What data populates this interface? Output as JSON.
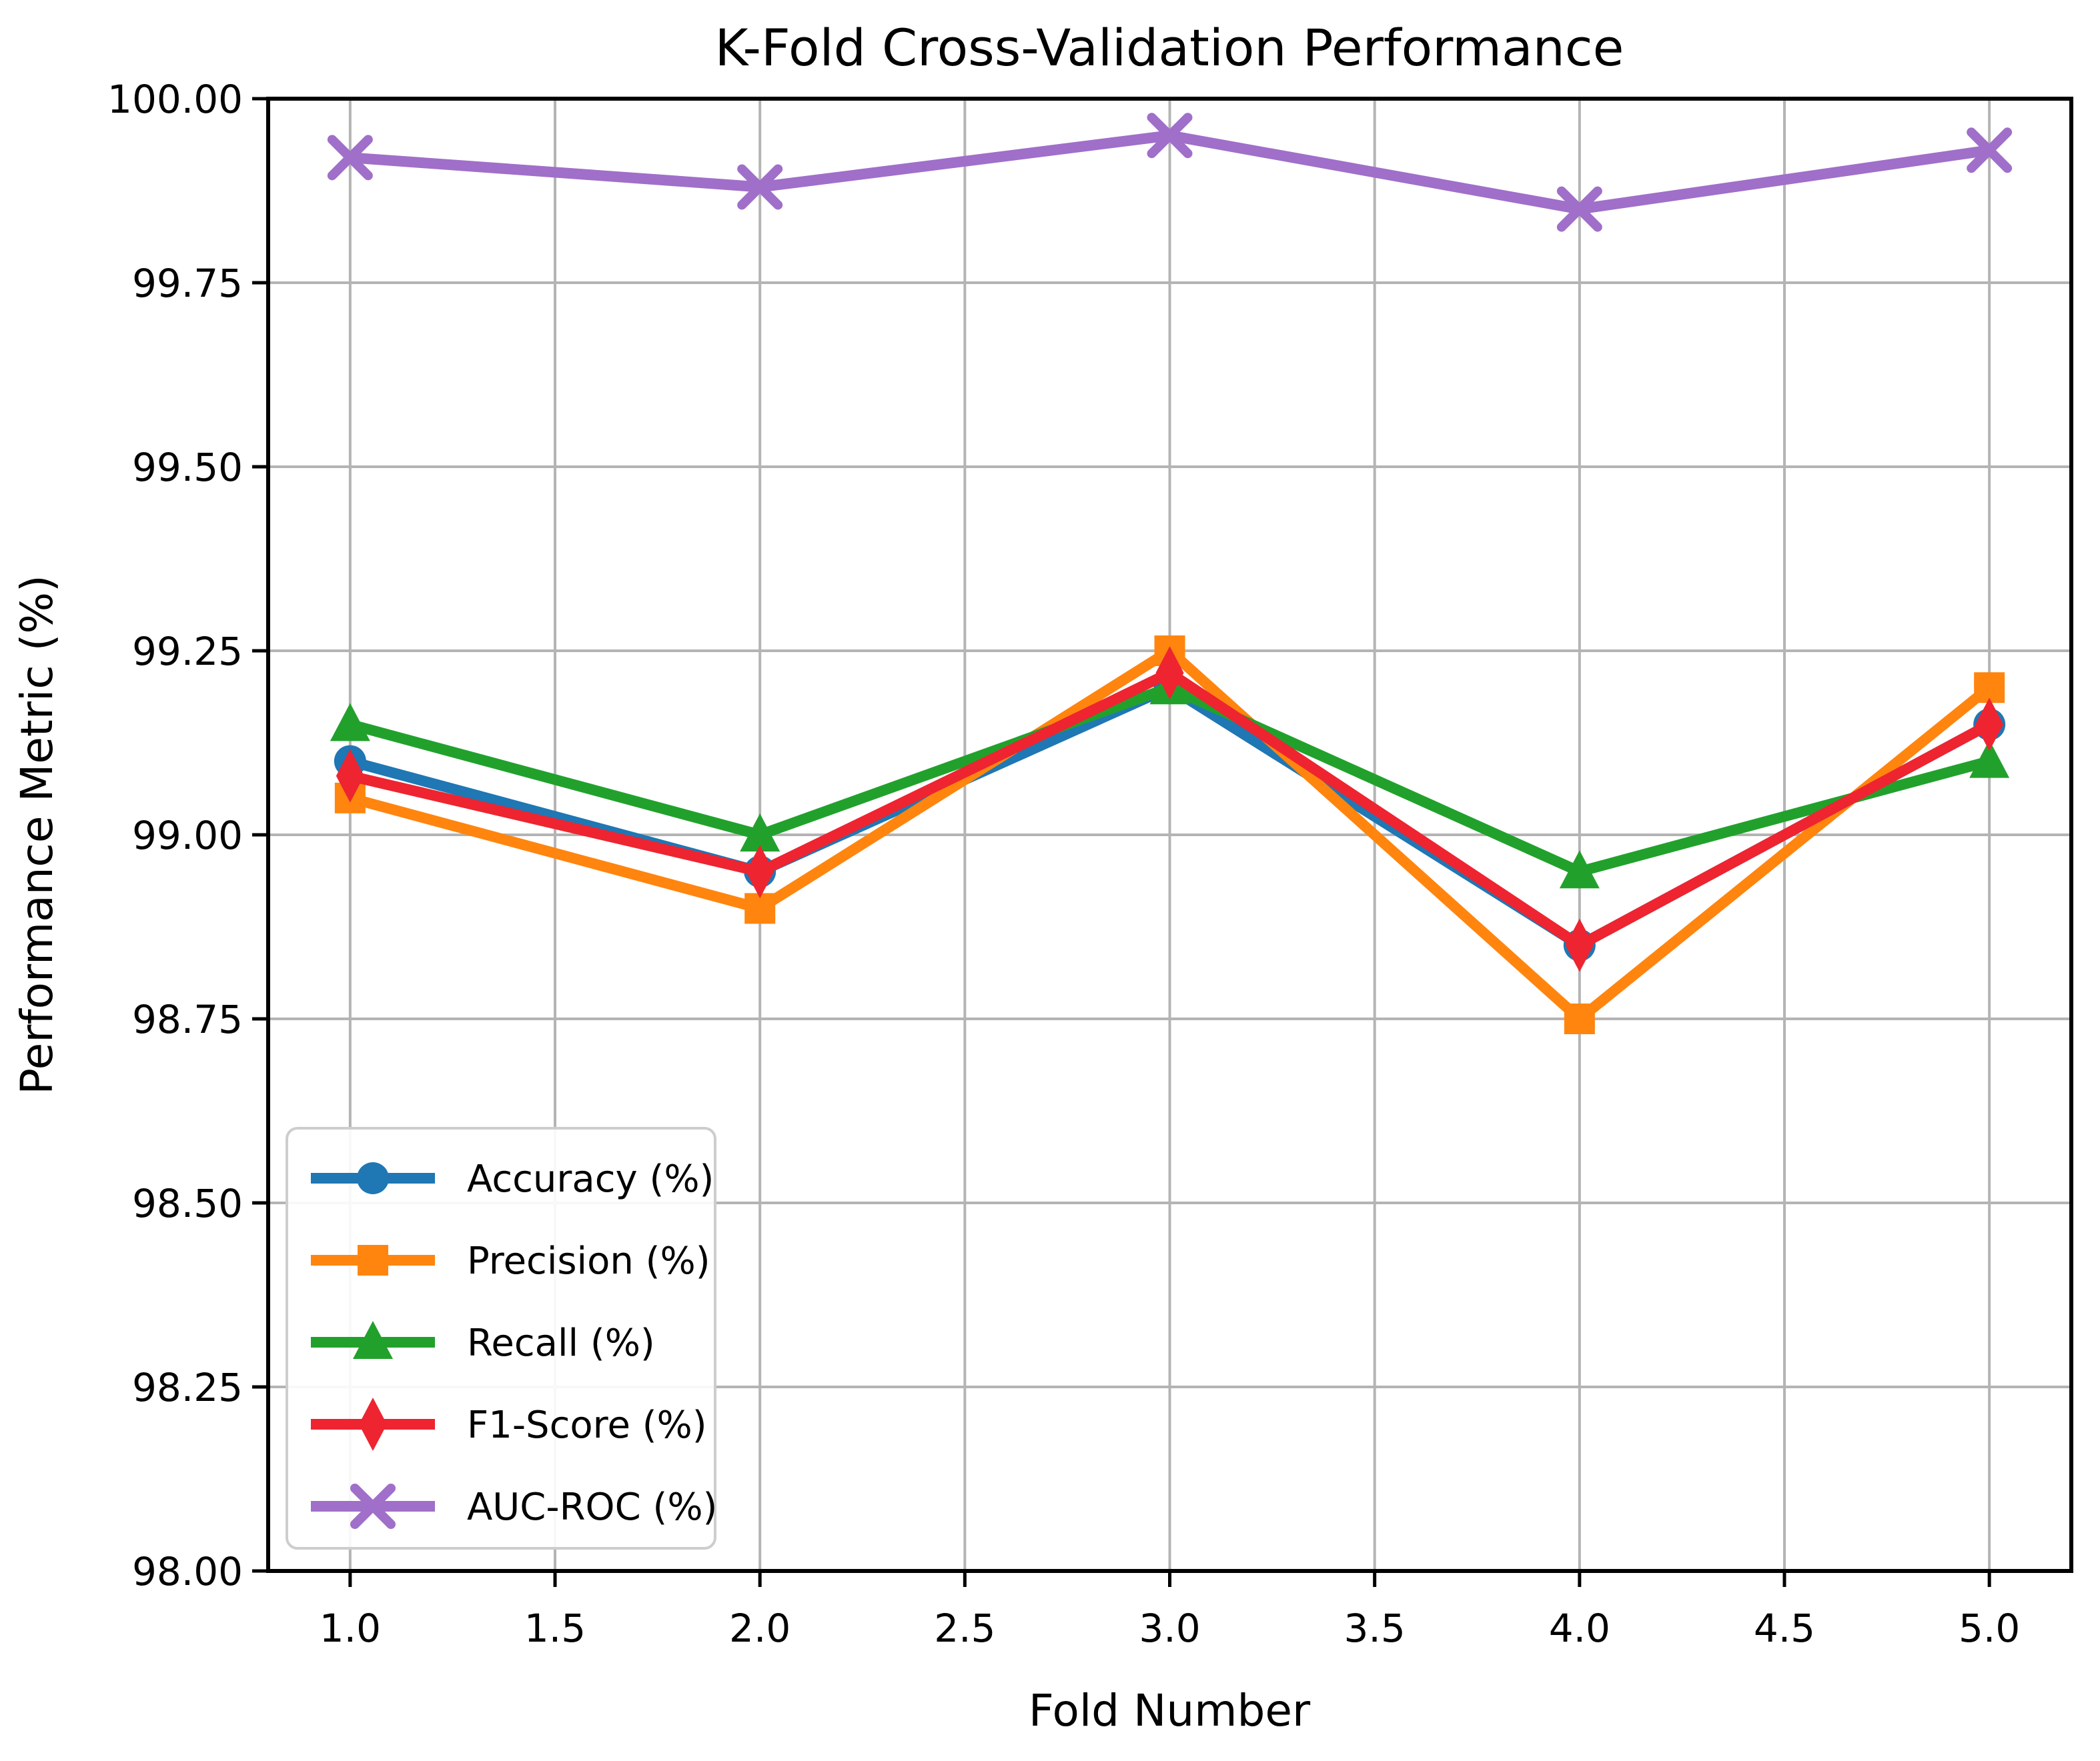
{
  "chart_data": {
    "type": "line",
    "title": "K-Fold Cross-Validation Performance",
    "xlabel": "Fold Number",
    "ylabel": "Performance Metric (%)",
    "x": [
      1,
      2,
      3,
      4,
      5
    ],
    "xlim": [
      0.8,
      5.2
    ],
    "ylim": [
      98.0,
      100.0
    ],
    "xticks": [
      1.0,
      1.5,
      2.0,
      2.5,
      3.0,
      3.5,
      4.0,
      4.5,
      5.0
    ],
    "xtick_labels": [
      "1.0",
      "1.5",
      "2.0",
      "2.5",
      "3.0",
      "3.5",
      "4.0",
      "4.5",
      "5.0"
    ],
    "yticks": [
      98.0,
      98.25,
      98.5,
      98.75,
      99.0,
      99.25,
      99.5,
      99.75,
      100.0
    ],
    "ytick_labels": [
      "98.00",
      "98.25",
      "98.50",
      "98.75",
      "99.00",
      "99.25",
      "99.50",
      "99.75",
      "100.00"
    ],
    "grid": true,
    "legend_position": "lower-left",
    "series": [
      {
        "name": "Accuracy (%)",
        "color": "#1f77b4",
        "marker": "circle",
        "values": [
          99.1,
          98.95,
          99.2,
          98.85,
          99.15
        ]
      },
      {
        "name": "Precision (%)",
        "color": "#ff850e",
        "marker": "square",
        "values": [
          99.05,
          98.9,
          99.25,
          98.75,
          99.2
        ]
      },
      {
        "name": "Recall (%)",
        "color": "#21a12c",
        "marker": "triangle",
        "values": [
          99.15,
          99.0,
          99.2,
          98.95,
          99.1
        ]
      },
      {
        "name": "F1-Score (%)",
        "color": "#ee2430",
        "marker": "diamond",
        "values": [
          99.08,
          98.95,
          99.22,
          98.85,
          99.15
        ]
      },
      {
        "name": "AUC-ROC (%)",
        "color": "#a06fc9",
        "marker": "x",
        "values": [
          99.92,
          99.88,
          99.95,
          99.85,
          99.93
        ]
      }
    ],
    "colors": {
      "background": "#ffffff",
      "grid": "#b4b4b4",
      "spine": "#000000",
      "legend_border": "#cdcdcd",
      "legend_background": "#ffffff"
    }
  }
}
